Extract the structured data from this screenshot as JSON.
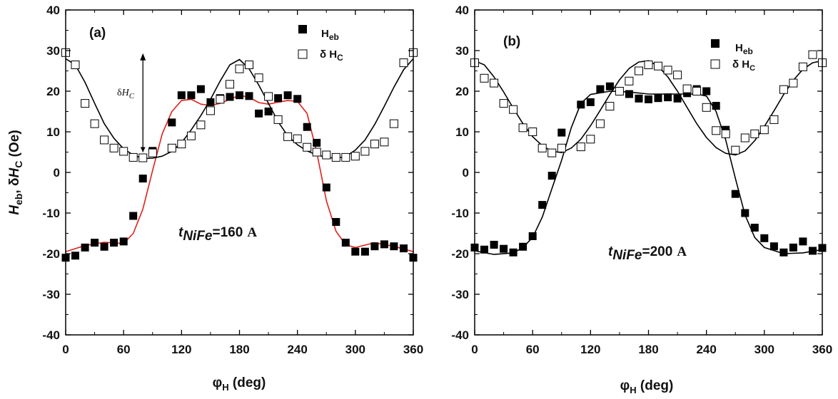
{
  "chart_data": [
    {
      "panel_label": "(a)",
      "type": "scatter",
      "xlabel_main": "φ",
      "xlabel_sub": "H",
      "xlabel_rest": " (deg)",
      "ylabel": {
        "h": "H",
        "eb": "eb",
        "sep": ", δ",
        "h2": "H",
        "c": "C",
        "unit": " (Oe)"
      },
      "xlim": [
        0,
        360
      ],
      "ylim": [
        -40,
        40
      ],
      "xticks": [
        "0",
        "60",
        "120",
        "180",
        "240",
        "300",
        "360"
      ],
      "yticks": [
        "-40",
        "-30",
        "-20",
        "-10",
        "0",
        "10",
        "20",
        "30",
        "40"
      ],
      "annotation": {
        "t": "t",
        "sub": "NiFe",
        "eq": "=160",
        "unit": "A",
        "value": 160
      },
      "arrow_label": {
        "d": "δ",
        "h": "H",
        "c": "C"
      },
      "arrow": {
        "x": 80,
        "y_from": 5,
        "y_to": 29
      },
      "legend": [
        {
          "name": "Heb",
          "main": "H",
          "sub": "eb",
          "marker": "filled-square"
        },
        {
          "name": "δHC",
          "main": "δ H",
          "sub": "C",
          "marker": "open-square"
        }
      ],
      "series": [
        {
          "name": "Heb",
          "marker": "filled-square",
          "x": [
            0,
            10,
            20,
            30,
            40,
            50,
            60,
            70,
            80,
            90,
            110,
            120,
            130,
            140,
            150,
            160,
            170,
            180,
            190,
            200,
            210,
            220,
            230,
            240,
            250,
            260,
            270,
            280,
            290,
            300,
            310,
            320,
            330,
            340,
            350,
            360
          ],
          "y": [
            -21,
            -20.5,
            -18.5,
            -17.3,
            -18.3,
            -17.3,
            -17,
            -10.7,
            -1.5,
            5.3,
            12.3,
            19,
            19,
            20.5,
            17.3,
            18.3,
            18.6,
            19,
            18.8,
            14.5,
            15,
            18.3,
            19,
            18.1,
            11.2,
            7.3,
            -3.7,
            -12.2,
            -17.3,
            -19.5,
            -19.5,
            -18.2,
            -17.7,
            -18.2,
            -18.7,
            -21
          ]
        },
        {
          "name": "δHC",
          "marker": "open-square",
          "x": [
            0,
            10,
            20,
            30,
            40,
            50,
            60,
            70,
            80,
            90,
            110,
            120,
            130,
            140,
            150,
            160,
            170,
            180,
            190,
            200,
            210,
            220,
            230,
            240,
            250,
            260,
            270,
            280,
            290,
            300,
            310,
            320,
            330,
            340,
            350,
            360
          ],
          "y": [
            29.5,
            26.5,
            17,
            12,
            8,
            6,
            5.2,
            3.7,
            3.6,
            4.8,
            6,
            7,
            9,
            11.7,
            15.2,
            18,
            21.7,
            25.5,
            26.5,
            23.3,
            18.7,
            13,
            8.8,
            8.3,
            6.2,
            5,
            4.3,
            3.7,
            3.7,
            4,
            5.2,
            7,
            7.5,
            12,
            27,
            29.5
          ]
        },
        {
          "name": "Heb fit",
          "type": "line",
          "color": "#e0201a",
          "x": [
            0,
            20,
            40,
            60,
            70,
            80,
            90,
            100,
            110,
            120,
            130,
            140,
            150,
            160,
            170,
            180,
            190,
            200,
            210,
            220,
            230,
            240,
            250,
            260,
            270,
            280,
            290,
            300,
            320,
            340,
            360
          ],
          "y": [
            -19.5,
            -18,
            -17.2,
            -17.5,
            -15,
            -9,
            0.5,
            9.5,
            15,
            17.7,
            18,
            16.8,
            16.5,
            17,
            18,
            19,
            18.5,
            17.2,
            16.8,
            17.3,
            17.7,
            17.5,
            14.5,
            5,
            -7,
            -14.5,
            -17.8,
            -18.5,
            -17.3,
            -18.2,
            -19.5
          ]
        },
        {
          "name": "δHC fit",
          "type": "line",
          "color": "#000000",
          "x": [
            0,
            10,
            20,
            30,
            40,
            50,
            60,
            70,
            80,
            90,
            100,
            110,
            120,
            130,
            140,
            150,
            160,
            170,
            180,
            190,
            200,
            210,
            220,
            230,
            240,
            250,
            260,
            270,
            280,
            290,
            300,
            310,
            320,
            330,
            340,
            350,
            360
          ],
          "y": [
            28,
            26.5,
            22.2,
            17,
            12,
            8.4,
            5.8,
            4.3,
            3.4,
            3.5,
            4,
            5.2,
            7.3,
            10.5,
            14,
            18,
            22.5,
            26.5,
            27.8,
            25.5,
            21.5,
            17,
            12.5,
            9,
            6.8,
            5.3,
            4.3,
            3.7,
            3.5,
            3.9,
            5.5,
            8,
            11.8,
            16.3,
            21,
            25.3,
            28
          ]
        }
      ]
    },
    {
      "panel_label": "(b)",
      "type": "scatter",
      "xlabel_main": "φ",
      "xlabel_sub": "H",
      "xlabel_rest": " (deg)",
      "xlim": [
        0,
        360
      ],
      "ylim": [
        -40,
        40
      ],
      "xticks": [
        "0",
        "60",
        "120",
        "180",
        "240",
        "300",
        "360"
      ],
      "yticks": [
        "-40",
        "-30",
        "-20",
        "-10",
        "0",
        "10",
        "20",
        "30",
        "40"
      ],
      "annotation": {
        "t": "t",
        "sub": "NiFe",
        "eq": "=200",
        "unit": "A",
        "value": 200
      },
      "legend": [
        {
          "name": "Heb",
          "main": "H",
          "sub": "eb",
          "marker": "filled-square"
        },
        {
          "name": "δHC",
          "main": "δ H",
          "sub": "C",
          "marker": "open-square"
        }
      ],
      "series": [
        {
          "name": "Heb",
          "marker": "filled-square",
          "x": [
            0,
            10,
            20,
            30,
            40,
            50,
            60,
            70,
            80,
            90,
            110,
            120,
            130,
            140,
            160,
            170,
            180,
            190,
            200,
            210,
            220,
            230,
            240,
            250,
            260,
            270,
            280,
            290,
            300,
            310,
            320,
            330,
            340,
            350,
            360
          ],
          "y": [
            -18.5,
            -19,
            -17.8,
            -18.8,
            -19.7,
            -18.3,
            -15.7,
            -8,
            -0.8,
            9.8,
            16.7,
            17.3,
            20.5,
            21.2,
            19.3,
            18.2,
            18,
            18.3,
            18.5,
            18.2,
            19.5,
            20.5,
            20,
            16.4,
            10.5,
            -5.3,
            -10,
            -13.6,
            -16.2,
            -18.2,
            -19.7,
            -18.5,
            -17,
            -19.3,
            -18.6
          ]
        },
        {
          "name": "δHC",
          "marker": "open-square",
          "x": [
            0,
            10,
            20,
            30,
            40,
            50,
            60,
            70,
            80,
            90,
            110,
            120,
            130,
            140,
            150,
            160,
            170,
            180,
            190,
            200,
            210,
            220,
            230,
            240,
            250,
            260,
            270,
            280,
            290,
            300,
            310,
            320,
            330,
            340,
            350,
            360
          ],
          "y": [
            27,
            23.2,
            22,
            17,
            15.5,
            11,
            10,
            6,
            4.8,
            6,
            6.3,
            8.2,
            12,
            16.3,
            20,
            22.5,
            25,
            26.5,
            26.2,
            25.2,
            24,
            20.6,
            20,
            16,
            10.3,
            9.5,
            5.5,
            8.5,
            9.5,
            10.5,
            13,
            20.4,
            22,
            26,
            29,
            27
          ]
        },
        {
          "name": "Heb fit",
          "type": "line",
          "color": "#000000",
          "x": [
            0,
            20,
            40,
            50,
            60,
            70,
            80,
            90,
            100,
            110,
            120,
            140,
            160,
            180,
            200,
            220,
            230,
            240,
            250,
            260,
            270,
            280,
            290,
            300,
            320,
            340,
            360
          ],
          "y": [
            -19.3,
            -20.2,
            -19.8,
            -18.5,
            -16,
            -11,
            -4,
            3,
            11,
            17,
            19.2,
            20,
            19.8,
            19.3,
            19.3,
            19.3,
            19.3,
            18.8,
            15,
            8,
            -1.5,
            -10.5,
            -16,
            -18.5,
            -20,
            -19.8,
            -19
          ]
        },
        {
          "name": "δHC fit",
          "type": "line",
          "color": "#000000",
          "x": [
            0,
            10,
            20,
            30,
            40,
            50,
            60,
            70,
            80,
            90,
            100,
            110,
            120,
            130,
            140,
            150,
            160,
            170,
            180,
            190,
            200,
            210,
            220,
            230,
            240,
            250,
            260,
            270,
            280,
            290,
            300,
            310,
            320,
            330,
            340,
            350,
            360
          ],
          "y": [
            27.5,
            26.5,
            23.5,
            19.8,
            15.8,
            12,
            8.8,
            6.6,
            5.2,
            4.9,
            6,
            8.2,
            11.5,
            15.3,
            19.2,
            22.8,
            25.6,
            27.2,
            27.5,
            26.2,
            23.5,
            20,
            16,
            12,
            8.6,
            6.1,
            4.7,
            4.3,
            5.3,
            7.8,
            11.3,
            15.2,
            19.2,
            22.7,
            25.4,
            27,
            27.5
          ]
        }
      ]
    }
  ]
}
